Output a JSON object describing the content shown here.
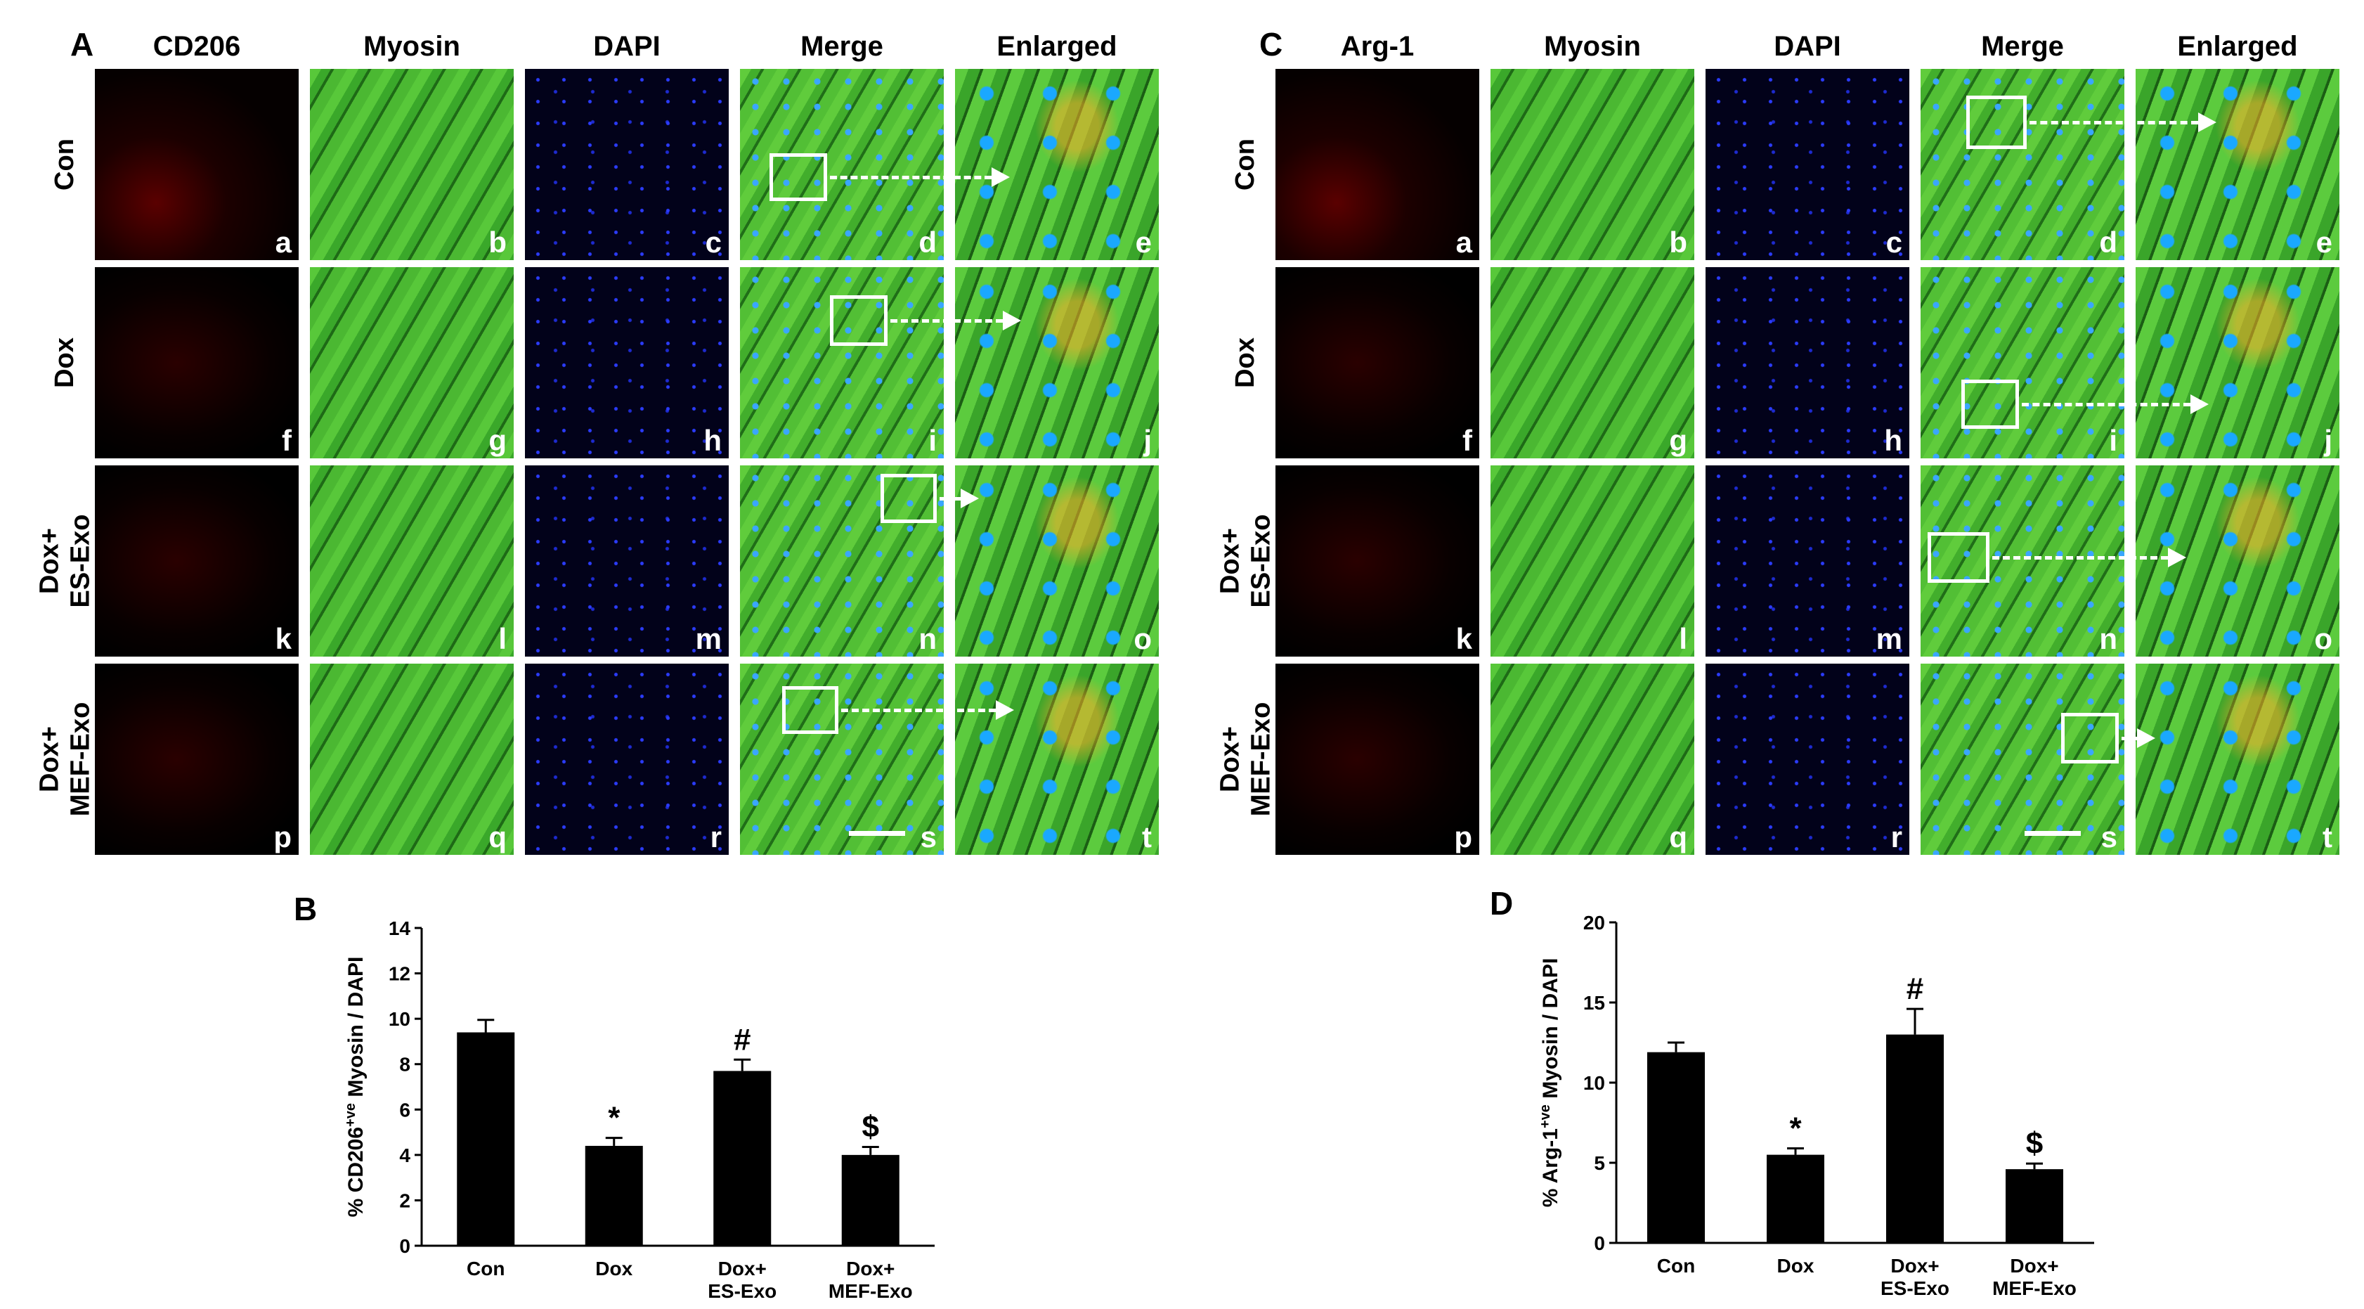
{
  "panels": {
    "A": {
      "letter": "A",
      "columns": [
        "CD206",
        "Myosin",
        "DAPI",
        "Merge",
        "Enlarged"
      ],
      "rows": [
        {
          "label": "Con",
          "tiles": [
            "a",
            "b",
            "c",
            "d",
            "e"
          ]
        },
        {
          "label": "Dox",
          "tiles": [
            "f",
            "g",
            "h",
            "i",
            "j"
          ]
        },
        {
          "label": "Dox+\nES-Exo",
          "tiles": [
            "k",
            "l",
            "m",
            "n",
            "o"
          ]
        },
        {
          "label": "Dox+\nMEF-Exo",
          "tiles": [
            "p",
            "q",
            "r",
            "s",
            "t"
          ]
        }
      ]
    },
    "C": {
      "letter": "C",
      "columns": [
        "Arg-1",
        "Myosin",
        "DAPI",
        "Merge",
        "Enlarged"
      ],
      "rows": [
        {
          "label": "Con",
          "tiles": [
            "a",
            "b",
            "c",
            "d",
            "e"
          ]
        },
        {
          "label": "Dox",
          "tiles": [
            "f",
            "g",
            "h",
            "i",
            "j"
          ]
        },
        {
          "label": "Dox+\nES-Exo",
          "tiles": [
            "k",
            "l",
            "m",
            "n",
            "o"
          ]
        },
        {
          "label": "Dox+\nMEF-Exo",
          "tiles": [
            "p",
            "q",
            "r",
            "s",
            "t"
          ]
        }
      ]
    }
  },
  "chart_data": [
    {
      "panel": "B",
      "type": "bar",
      "categories": [
        "Con",
        "Dox",
        "Dox+\nES-Exo",
        "Dox+\nMEF-Exo"
      ],
      "values": [
        9.4,
        4.4,
        7.7,
        4.0
      ],
      "errors": [
        0.55,
        0.35,
        0.5,
        0.35
      ],
      "annotations": [
        "",
        "*",
        "#",
        "$"
      ],
      "ylabel_parts": [
        "% CD206",
        "+ve",
        " Myosin / DAPI"
      ],
      "ylim": [
        0,
        14
      ],
      "yticks": [
        0,
        2,
        4,
        6,
        8,
        10,
        12,
        14
      ],
      "bar_color": "#000000"
    },
    {
      "panel": "D",
      "type": "bar",
      "categories": [
        "Con",
        "Dox",
        "Dox+\nES-Exo",
        "Dox+\nMEF-Exo"
      ],
      "values": [
        11.9,
        5.5,
        13.0,
        4.6
      ],
      "errors": [
        0.6,
        0.4,
        1.6,
        0.35
      ],
      "annotations": [
        "",
        "*",
        "#",
        "$"
      ],
      "ylabel_parts": [
        "% Arg-1",
        "+ve",
        " Myosin / DAPI"
      ],
      "ylim": [
        0,
        20
      ],
      "yticks": [
        0,
        5,
        10,
        15,
        20
      ],
      "bar_color": "#000000"
    }
  ]
}
